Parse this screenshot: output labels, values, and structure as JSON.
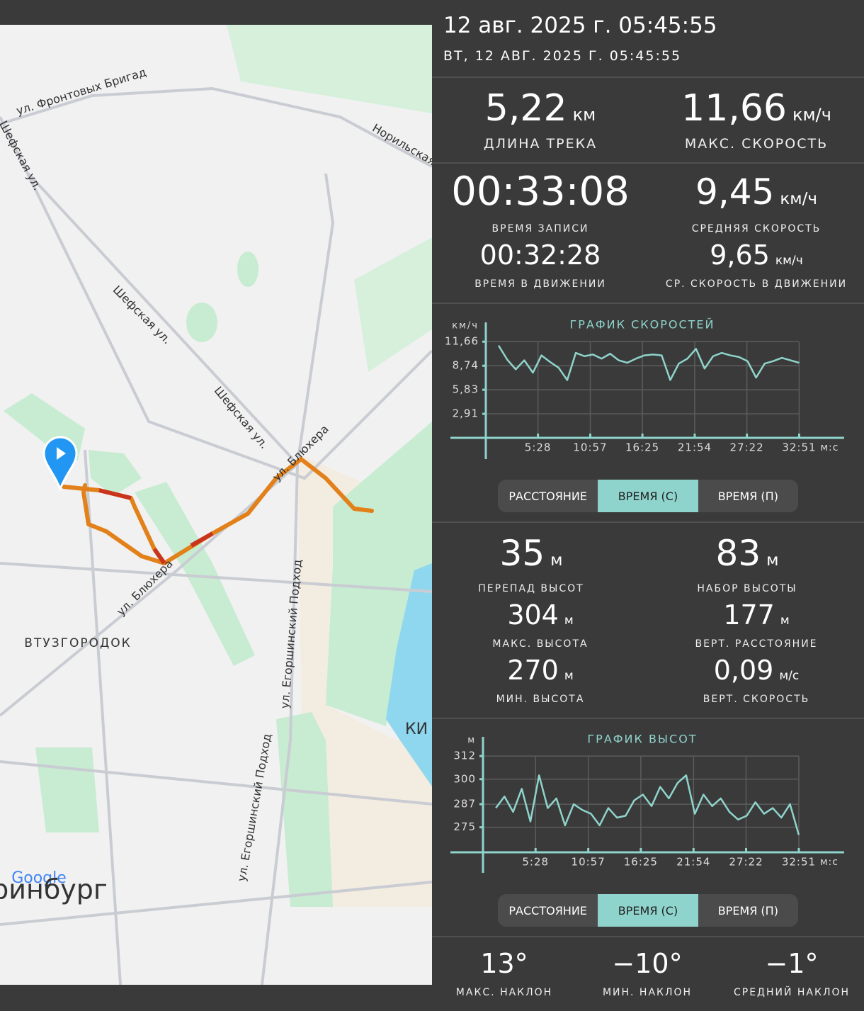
{
  "header": {
    "date": "12 авг. 2025 г. 05:45:55",
    "date_caps": "ВТ, 12 АВГ. 2025 Г. 05:45:55"
  },
  "map": {
    "labels": [
      "ул. Фронтовых Бригад",
      "Норильская",
      "Шефская ул.",
      "Шефская ул.",
      "Шефская ул.",
      "ул. Блюхера",
      "ул. Блюхера",
      "ул. Егоршинский Подход",
      "ул. Егоршинский Подход",
      "ВТУЗГОРОДОК",
      "КИ",
      "Google",
      "ринбург"
    ]
  },
  "track_stats": [
    {
      "value": "5,22",
      "unit": "км",
      "label": "ДЛИНА ТРЕКА"
    },
    {
      "value": "11,66",
      "unit": "км/ч",
      "label": "МАКС. СКОРОСТЬ"
    },
    {
      "value": "00:33:08",
      "label": "ВРЕМЯ ЗАПИСИ"
    },
    {
      "value": "9,45",
      "unit": "км/ч",
      "label": "СРЕДНЯЯ СКОРОСТЬ"
    },
    {
      "value": "00:32:28",
      "label": "ВРЕМЯ В ДВИЖЕНИИ"
    },
    {
      "value": "9,65",
      "unit": "км/ч",
      "label": "СР. СКОРОСТЬ В ДВИЖЕНИИ"
    }
  ],
  "elevation_stats": [
    {
      "value": "35",
      "unit": "м",
      "label": "ПЕРЕПАД ВЫСОТ"
    },
    {
      "value": "83",
      "unit": "м",
      "label": "НАБОР ВЫСОТЫ"
    },
    {
      "value": "304",
      "unit": "м",
      "label": "МАКС. ВЫСОТА"
    },
    {
      "value": "177",
      "unit": "м",
      "label": "ВЕРТ. РАССТОЯНИЕ"
    },
    {
      "value": "270",
      "unit": "м",
      "label": "МИН. ВЫСОТА"
    },
    {
      "value": "0,09",
      "unit": "м/с",
      "label": "ВЕРТ. СКОРОСТЬ"
    }
  ],
  "slope_stats": [
    {
      "value": "13°",
      "label": "МАКС. НАКЛОН"
    },
    {
      "value": "−10°",
      "label": "МИН. НАКЛОН"
    },
    {
      "value": "−1°",
      "label": "СРЕДНИЙ НАКЛОН"
    }
  ],
  "speed_toggle": {
    "options": [
      "РАССТОЯНИЕ",
      "ВРЕМЯ (С)",
      "ВРЕМЯ (П)"
    ],
    "selected": 1
  },
  "elevation_toggle": {
    "options": [
      "РАССТОЯНИЕ",
      "ВРЕМЯ (С)",
      "ВРЕМЯ (П)"
    ],
    "selected": 1
  },
  "chart_data": [
    {
      "type": "line",
      "title": "ГРАФИК СКОРОСТЕЙ",
      "y_unit": "км/ч",
      "x_unit": "м:с",
      "color": "#8fd4cc",
      "grid": true,
      "x": [
        80,
        134,
        188,
        242,
        296,
        350,
        404,
        458,
        512,
        566,
        620,
        674,
        728,
        782,
        836,
        890,
        944,
        998,
        1052,
        1106,
        1160,
        1214,
        1268,
        1322,
        1376,
        1430,
        1484,
        1538,
        1592,
        1646,
        1700,
        1754,
        1808,
        1862,
        1916,
        1971
      ],
      "values": [
        11.2,
        9.5,
        8.3,
        9.4,
        7.9,
        10.0,
        9.2,
        8.5,
        7.0,
        10.3,
        9.9,
        10.1,
        9.6,
        10.2,
        9.4,
        9.1,
        9.6,
        10.0,
        10.1,
        10.0,
        7.0,
        9.0,
        9.6,
        10.8,
        8.4,
        9.9,
        10.3,
        10.0,
        9.8,
        9.3,
        7.3,
        9.0,
        9.3,
        9.7,
        9.4,
        9.1
      ],
      "xlim": [
        0,
        2254
      ],
      "ylim": [
        0,
        14
      ],
      "xticks": [
        {
          "value": 328,
          "label": "5:28"
        },
        {
          "value": 657,
          "label": "10:57"
        },
        {
          "value": 985,
          "label": "16:25"
        },
        {
          "value": 1314,
          "label": "21:54"
        },
        {
          "value": 1642,
          "label": "27:22"
        },
        {
          "value": 1971,
          "label": "32:51"
        }
      ],
      "yticks": [
        {
          "value": 2.91,
          "label": "2,91"
        },
        {
          "value": 5.83,
          "label": "5,83"
        },
        {
          "value": 8.74,
          "label": "8,74"
        },
        {
          "value": 11.66,
          "label": "11,66"
        }
      ]
    },
    {
      "type": "line",
      "title": "ГРАФИК ВЫСОТ",
      "y_unit": "м",
      "x_unit": "м:с",
      "color": "#8fd4cc",
      "grid": true,
      "x": [
        80,
        134,
        188,
        242,
        296,
        350,
        404,
        458,
        512,
        566,
        620,
        674,
        728,
        782,
        836,
        890,
        944,
        998,
        1052,
        1106,
        1160,
        1214,
        1268,
        1322,
        1376,
        1430,
        1484,
        1538,
        1592,
        1646,
        1700,
        1754,
        1808,
        1862,
        1916,
        1971
      ],
      "values": [
        285,
        291,
        283,
        295,
        278,
        302,
        285,
        290,
        276,
        287,
        284,
        282,
        276,
        285,
        280,
        281,
        289,
        292,
        286,
        296,
        290,
        298,
        302,
        282,
        292,
        286,
        290,
        283,
        279,
        281,
        288,
        282,
        285,
        280,
        287,
        271
      ],
      "xlim": [
        0,
        2254
      ],
      "ylim": [
        262,
        322
      ],
      "xticks": [
        {
          "value": 328,
          "label": "5:28"
        },
        {
          "value": 657,
          "label": "10:57"
        },
        {
          "value": 985,
          "label": "16:25"
        },
        {
          "value": 1314,
          "label": "21:54"
        },
        {
          "value": 1642,
          "label": "27:22"
        },
        {
          "value": 1971,
          "label": "32:51"
        }
      ],
      "yticks": [
        275,
        287,
        300,
        312
      ]
    }
  ]
}
